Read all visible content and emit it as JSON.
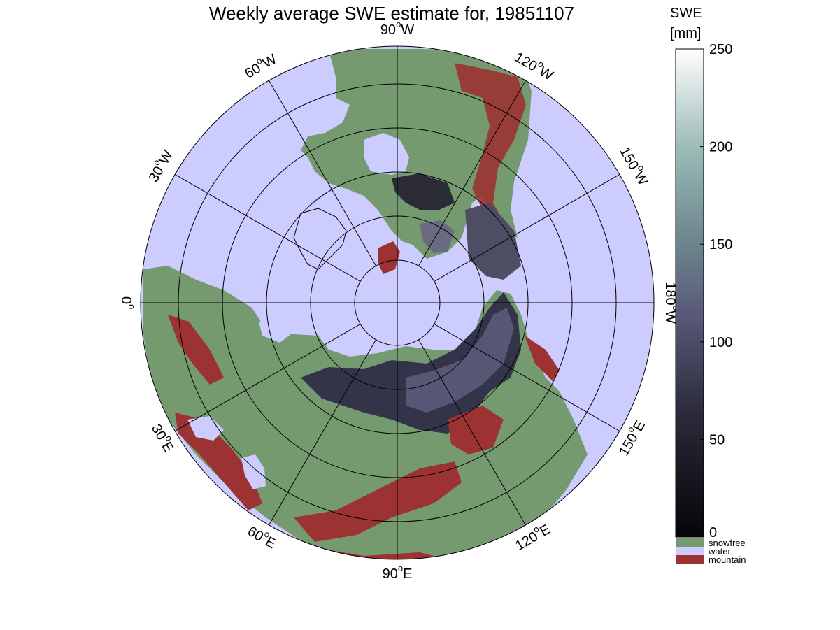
{
  "title": "Weekly average SWE estimate for, 19851107",
  "colors": {
    "water": "#ccccff",
    "snowfree": "#759a70",
    "mountain": "#9c3232",
    "snow_low": "#0a0a10",
    "snow_mid": "#585878",
    "snow_high": "#8fb3ad",
    "snow_max": "#ffffff"
  },
  "map": {
    "projection": "north-polar-stereographic",
    "longitude_labels": [
      {
        "key": "90W",
        "deg": "90",
        "hemi": "W"
      },
      {
        "key": "120W",
        "deg": "120",
        "hemi": "W"
      },
      {
        "key": "150W",
        "deg": "150",
        "hemi": "W"
      },
      {
        "key": "180W",
        "deg": "180",
        "hemi": "W"
      },
      {
        "key": "150E",
        "deg": "150",
        "hemi": "E"
      },
      {
        "key": "120E",
        "deg": "120",
        "hemi": "E"
      },
      {
        "key": "90E",
        "deg": "90",
        "hemi": "E"
      },
      {
        "key": "60E",
        "deg": "60",
        "hemi": "E"
      },
      {
        "key": "30E",
        "deg": "30",
        "hemi": "E"
      },
      {
        "key": "0",
        "deg": "0",
        "hemi": ""
      },
      {
        "key": "30W",
        "deg": "30",
        "hemi": "W"
      },
      {
        "key": "60W",
        "deg": "60",
        "hemi": "W"
      }
    ]
  },
  "colorbar": {
    "title_line1": "SWE",
    "title_line2": "[mm]",
    "ticks": [
      "0",
      "50",
      "100",
      "150",
      "200",
      "250"
    ],
    "categories": [
      {
        "label": "snowfree",
        "color": "#759a70"
      },
      {
        "label": "water",
        "color": "#ccccff"
      },
      {
        "label": "mountain",
        "color": "#9c3232"
      }
    ]
  }
}
